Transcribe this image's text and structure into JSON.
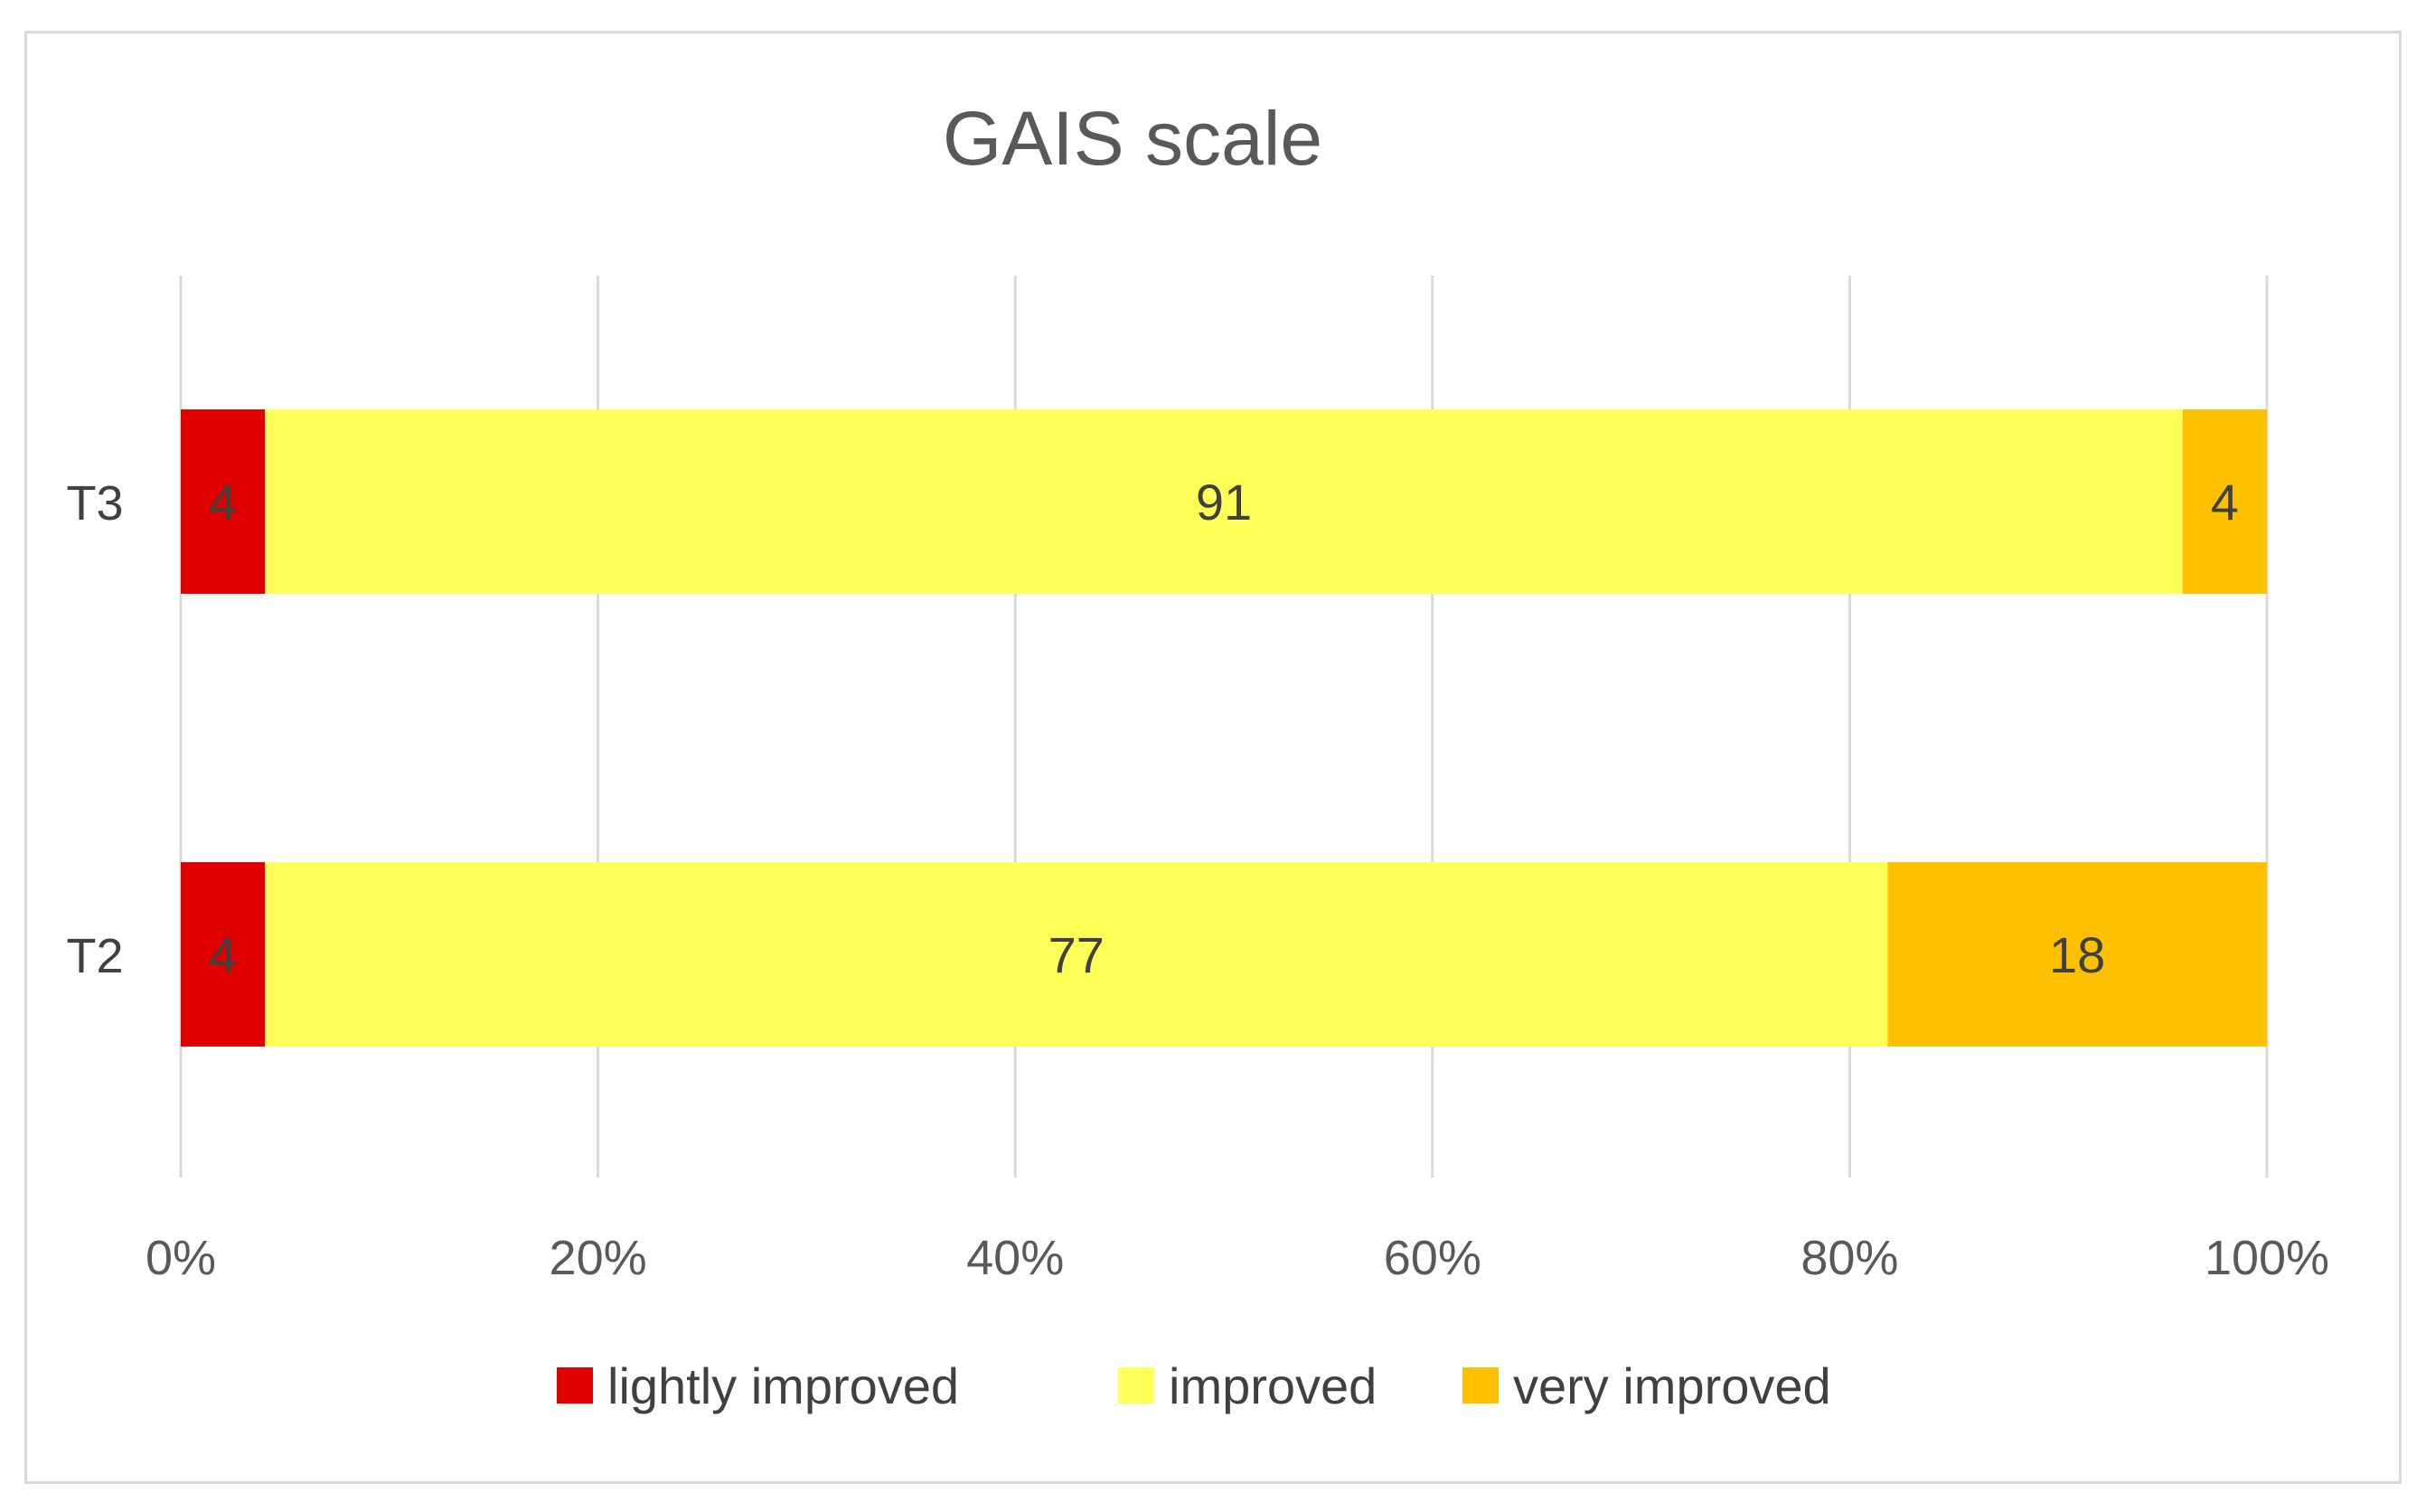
{
  "chart_data": {
    "type": "bar",
    "orientation": "horizontal",
    "stacked": "percent",
    "title": "GAIS scale",
    "categories": [
      "T3",
      "T2"
    ],
    "series": [
      {
        "name": "lightly improved",
        "values": [
          4,
          4
        ],
        "color": "#e10000"
      },
      {
        "name": "improved",
        "values": [
          91,
          77
        ],
        "color": "#ffff57"
      },
      {
        "name": "very improved",
        "values": [
          4,
          18
        ],
        "color": "#ffc000"
      }
    ],
    "x_ticks": [
      "0%",
      "20%",
      "40%",
      "60%",
      "80%",
      "100%"
    ],
    "xlim": [
      0,
      100
    ],
    "grid": true,
    "legend_position": "bottom"
  }
}
